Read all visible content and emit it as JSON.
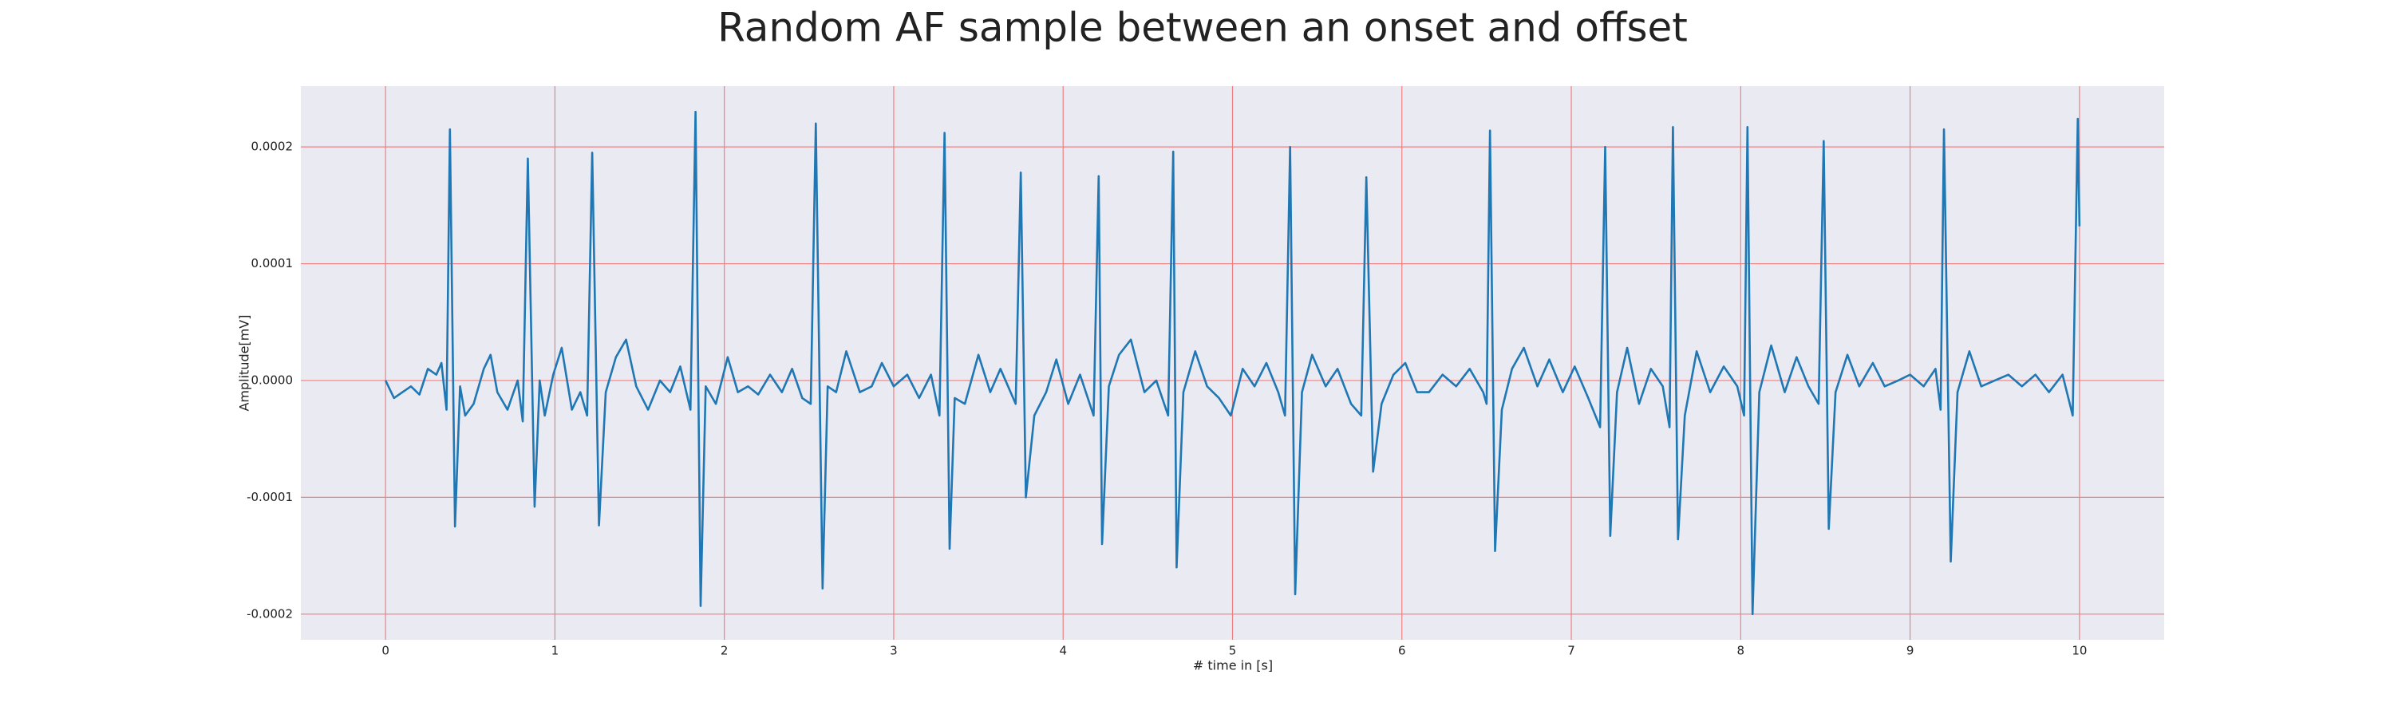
{
  "chart_data": {
    "type": "line",
    "title": "Random AF sample between an onset and offset",
    "x_label": "# time in [s]",
    "y_label": "Amplitude[mV]",
    "xlim": [
      -0.5,
      10.5
    ],
    "ylim": [
      -0.000222,
      0.000252
    ],
    "xticks": [
      0,
      1,
      2,
      3,
      4,
      5,
      6,
      7,
      8,
      9,
      10
    ],
    "yticks": [
      {
        "value": -0.0002,
        "label": "-0.0002"
      },
      {
        "value": -0.0001,
        "label": "-0.0001"
      },
      {
        "value": 0,
        "label": "0.0000"
      },
      0.0001,
      0.0002
    ],
    "grid": true,
    "grid_color": "#f08080",
    "background": "#eaeaf2",
    "series": [
      {
        "color": "#1f77b4",
        "x": [
          0,
          0.05,
          0.1,
          0.15,
          0.2,
          0.25,
          0.3,
          0.33,
          0.36,
          0.38,
          0.41,
          0.44,
          0.47,
          0.52,
          0.58,
          0.62,
          0.66,
          0.72,
          0.78,
          0.81,
          0.84,
          0.88,
          0.91,
          0.94,
          0.99,
          1.04,
          1.1,
          1.15,
          1.19,
          1.22,
          1.26,
          1.3,
          1.36,
          1.42,
          1.48,
          1.55,
          1.62,
          1.68,
          1.74,
          1.8,
          1.83,
          1.86,
          1.89,
          1.95,
          2.02,
          2.08,
          2.14,
          2.2,
          2.27,
          2.34,
          2.4,
          2.46,
          2.51,
          2.54,
          2.58,
          2.61,
          2.66,
          2.72,
          2.8,
          2.87,
          2.93,
          3.0,
          3.08,
          3.15,
          3.22,
          3.27,
          3.3,
          3.33,
          3.36,
          3.42,
          3.5,
          3.57,
          3.63,
          3.72,
          3.75,
          3.78,
          3.83,
          3.9,
          3.96,
          4.03,
          4.1,
          4.18,
          4.21,
          4.23,
          4.27,
          4.33,
          4.4,
          4.48,
          4.55,
          4.62,
          4.65,
          4.67,
          4.71,
          4.78,
          4.85,
          4.92,
          4.99,
          5.06,
          5.13,
          5.2,
          5.27,
          5.31,
          5.34,
          5.37,
          5.41,
          5.47,
          5.55,
          5.62,
          5.7,
          5.76,
          5.79,
          5.83,
          5.88,
          5.95,
          6.02,
          6.09,
          6.16,
          6.24,
          6.32,
          6.4,
          6.48,
          6.5,
          6.52,
          6.55,
          6.59,
          6.65,
          6.72,
          6.8,
          6.87,
          6.95,
          7.02,
          7.1,
          7.17,
          7.2,
          7.23,
          7.27,
          7.33,
          7.4,
          7.47,
          7.54,
          7.58,
          7.6,
          7.63,
          7.67,
          7.74,
          7.82,
          7.9,
          7.98,
          8.02,
          8.04,
          8.07,
          8.11,
          8.18,
          8.26,
          8.33,
          8.4,
          8.46,
          8.49,
          8.52,
          8.56,
          8.63,
          8.7,
          8.78,
          8.85,
          8.93,
          9.0,
          9.08,
          9.15,
          9.18,
          9.2,
          9.24,
          9.28,
          9.35,
          9.42,
          9.5,
          9.58,
          9.66,
          9.74,
          9.82,
          9.9,
          9.96,
          9.99,
          10.0
        ],
        "values": [
          0,
          -1.5e-05,
          -1e-05,
          -5e-06,
          -1.2e-05,
          1e-05,
          5e-06,
          1.5e-05,
          -2.5e-05,
          0.000215,
          -0.000125,
          -5e-06,
          -3e-05,
          -2e-05,
          1e-05,
          2.2e-05,
          -1e-05,
          -2.5e-05,
          0,
          -3.5e-05,
          0.00019,
          -0.000108,
          0,
          -3e-05,
          5e-06,
          2.8e-05,
          -2.5e-05,
          -1e-05,
          -3e-05,
          0.000195,
          -0.000124,
          -1e-05,
          2e-05,
          3.5e-05,
          -5e-06,
          -2.5e-05,
          0,
          -1e-05,
          1.2e-05,
          -2.5e-05,
          0.00023,
          -0.000193,
          -5e-06,
          -2e-05,
          2e-05,
          -1e-05,
          -5e-06,
          -1.2e-05,
          5e-06,
          -1e-05,
          1e-05,
          -1.5e-05,
          -2e-05,
          0.00022,
          -0.000178,
          -5e-06,
          -1e-05,
          2.5e-05,
          -1e-05,
          -5e-06,
          1.5e-05,
          -5e-06,
          5e-06,
          -1.5e-05,
          5e-06,
          -3e-05,
          0.000212,
          -0.000144,
          -1.5e-05,
          -2e-05,
          2.2e-05,
          -1e-05,
          1e-05,
          -2e-05,
          0.000178,
          -0.0001,
          -3e-05,
          -1e-05,
          1.8e-05,
          -2e-05,
          5e-06,
          -3e-05,
          0.000175,
          -0.00014,
          -5e-06,
          2.2e-05,
          3.5e-05,
          -1e-05,
          0,
          -3e-05,
          0.000196,
          -0.00016,
          -1e-05,
          2.5e-05,
          -5e-06,
          -1.5e-05,
          -3e-05,
          1e-05,
          -5e-06,
          1.5e-05,
          -1e-05,
          -3e-05,
          0.0002,
          -0.000183,
          -1e-05,
          2.2e-05,
          -5e-06,
          1e-05,
          -2e-05,
          -3e-05,
          0.000174,
          -7.8e-05,
          -2e-05,
          5e-06,
          1.5e-05,
          -1e-05,
          -1e-05,
          5e-06,
          -5e-06,
          1e-05,
          -1e-05,
          -2e-05,
          0.000214,
          -0.000146,
          -2.5e-05,
          1e-05,
          2.8e-05,
          -5e-06,
          1.8e-05,
          -1e-05,
          1.2e-05,
          -1.5e-05,
          -4e-05,
          0.0002,
          -0.000133,
          -1e-05,
          2.8e-05,
          -2e-05,
          1e-05,
          -5e-06,
          -4e-05,
          0.000217,
          -0.000136,
          -3e-05,
          2.5e-05,
          -1e-05,
          1.2e-05,
          -5e-06,
          -3e-05,
          0.000217,
          -0.0002,
          -1e-05,
          3e-05,
          -1e-05,
          2e-05,
          -5e-06,
          -2e-05,
          0.000205,
          -0.000127,
          -1e-05,
          2.2e-05,
          -5e-06,
          1.5e-05,
          -5e-06,
          0,
          5e-06,
          -5e-06,
          1e-05,
          -2.5e-05,
          0.000215,
          -0.000155,
          -1e-05,
          2.5e-05,
          -5e-06,
          0,
          5e-06,
          -5e-06,
          5e-06,
          -1e-05,
          5e-06,
          -3e-05,
          0.000224,
          0.000132
        ]
      }
    ]
  }
}
